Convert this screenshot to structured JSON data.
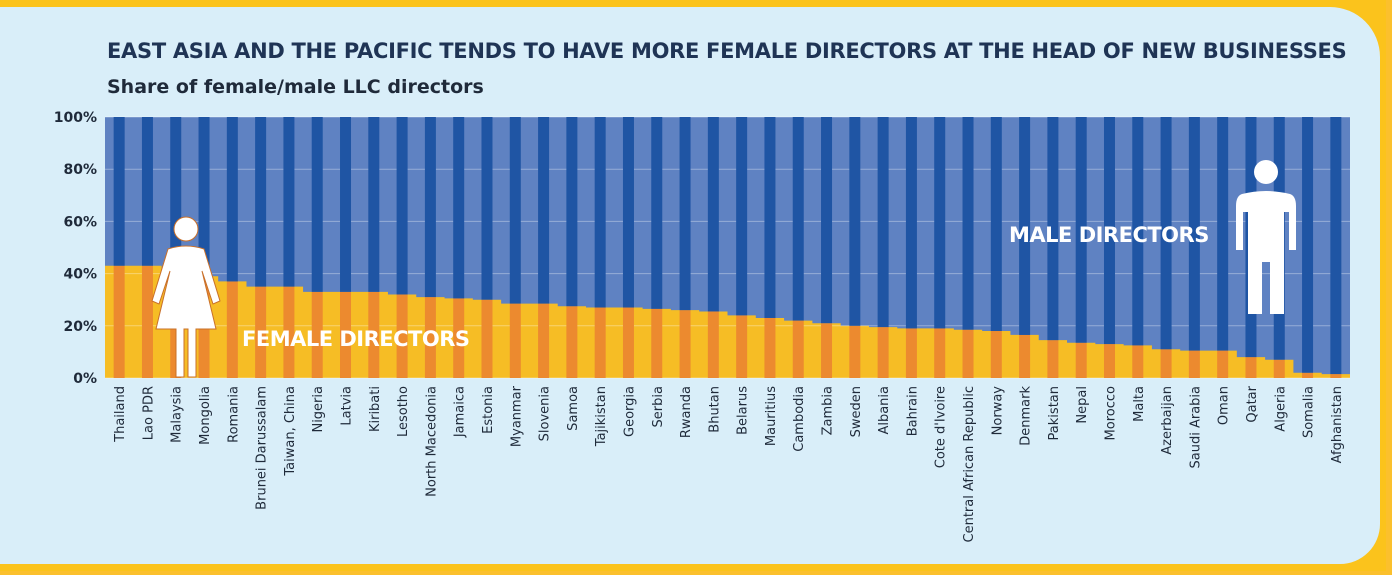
{
  "colors": {
    "female_bar": "#ec8a2f",
    "female_bg": "#f6bd25",
    "male_bar": "#1f55a4",
    "male_bg": "#5f82c2",
    "axis_text": "#1f2a3a",
    "frame": "#fbc31c",
    "panel": "#d9eef9"
  },
  "chart_data": {
    "type": "bar",
    "stacked": true,
    "title": "EAST ASIA AND THE PACIFIC TENDS TO HAVE MORE FEMALE DIRECTORS AT THE HEAD OF NEW BUSINESSES",
    "subtitle": "Share of female/male LLC directors",
    "ylim": [
      0,
      100
    ],
    "yticks": [
      "0%",
      "20%",
      "40%",
      "60%",
      "80%",
      "100%"
    ],
    "ytick_values": [
      0,
      20,
      40,
      60,
      80,
      100
    ],
    "annotations": {
      "female": "FEMALE DIRECTORS",
      "male": "MALE DIRECTORS"
    },
    "icons": {
      "female": "female-person-icon",
      "male": "male-person-icon"
    },
    "categories": [
      "Thailand",
      "Lao PDR",
      "Malaysia",
      "Mongolia",
      "Romania",
      "Brunei Darussalam",
      "Taiwan, China",
      "Nigeria",
      "Latvia",
      "Kiribati",
      "Lesotho",
      "North Macedonia",
      "Jamaica",
      "Estonia",
      "Myanmar",
      "Slovenia",
      "Samoa",
      "Tajikistan",
      "Georgia",
      "Serbia",
      "Rwanda",
      "Bhutan",
      "Belarus",
      "Mauritius",
      "Cambodia",
      "Zambia",
      "Sweden",
      "Albania",
      "Bahrain",
      "Cote d'Ivoire",
      "Central African Republic",
      "Norway",
      "Denmark",
      "Pakistan",
      "Nepal",
      "Morocco",
      "Malta",
      "Azerbaijan",
      "Saudi Arabia",
      "Oman",
      "Qatar",
      "Algeria",
      "Somalia",
      "Afghanistan"
    ],
    "series": [
      {
        "name": "Female directors",
        "values": [
          43,
          43,
          41,
          39,
          37,
          35,
          35,
          33,
          33,
          33,
          32,
          31,
          30.5,
          30,
          28.5,
          28.5,
          27.5,
          27,
          27,
          26.5,
          26,
          25.5,
          24,
          23,
          22,
          21,
          20,
          19.5,
          19,
          19,
          18.5,
          18,
          16.5,
          14.5,
          13.5,
          13,
          12.5,
          11,
          10.5,
          10.5,
          8,
          7,
          2,
          1.5
        ]
      },
      {
        "name": "Male directors",
        "values": [
          57,
          57,
          59,
          61,
          63,
          65,
          65,
          67,
          67,
          67,
          68,
          69,
          69.5,
          70,
          71.5,
          71.5,
          72.5,
          73,
          73,
          73.5,
          74,
          74.5,
          76,
          77,
          78,
          79,
          80,
          80.5,
          81,
          81,
          81.5,
          82,
          83.5,
          85.5,
          86.5,
          87,
          87.5,
          89,
          89.5,
          89.5,
          92,
          93,
          98,
          98.5
        ]
      }
    ]
  }
}
